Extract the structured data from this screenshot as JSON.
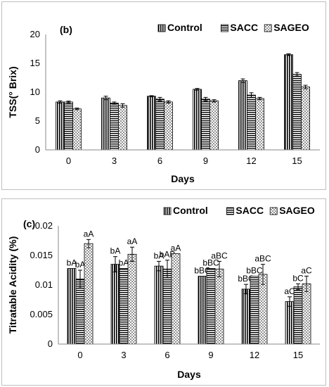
{
  "chart_data": [
    {
      "type": "bar",
      "panel_label": "(b)",
      "categories": [
        "0",
        "3",
        "6",
        "9",
        "12",
        "15"
      ],
      "xlabel": "Days",
      "ylabel": "TSS(° Brix)",
      "ylim": [
        0,
        20
      ],
      "yticks": [
        "0",
        "5",
        "10",
        "15",
        "20"
      ],
      "grid": false,
      "legend_position": "top-right",
      "series": [
        {
          "name": "Control",
          "values": [
            8.3,
            9.0,
            9.3,
            10.5,
            12.0,
            16.5
          ],
          "errors": [
            0.2,
            0.3,
            0.1,
            0.15,
            0.3,
            0.15
          ]
        },
        {
          "name": "SACC",
          "values": [
            8.3,
            8.1,
            8.8,
            8.8,
            9.5,
            13.1
          ],
          "errors": [
            0.15,
            0.2,
            0.3,
            0.3,
            0.4,
            0.3
          ]
        },
        {
          "name": "SAGEO",
          "values": [
            7.1,
            7.7,
            8.3,
            8.5,
            8.9,
            10.9
          ],
          "errors": [
            0.15,
            0.3,
            0.2,
            0.2,
            0.2,
            0.3
          ]
        }
      ]
    },
    {
      "type": "bar",
      "panel_label": "(c)",
      "categories": [
        "0",
        "3",
        "6",
        "9",
        "12",
        "15"
      ],
      "xlabel": "Days",
      "ylabel": "Titratable Acidity (%)",
      "ylim": [
        0,
        0.02
      ],
      "yticks": [
        "0",
        "0.005",
        "0.01",
        "0.015",
        "0.02"
      ],
      "grid": false,
      "legend_position": "top-right",
      "series": [
        {
          "name": "Control",
          "values": [
            0.0128,
            0.0135,
            0.0132,
            0.0115,
            0.0093,
            0.0072
          ],
          "errors": [
            0.0,
            0.0013,
            0.0008,
            0.0,
            0.0008,
            0.0008
          ],
          "labels": [
            "bA",
            "bA",
            "bA",
            "bBC",
            "bBC",
            "aC"
          ]
        },
        {
          "name": "SACC",
          "values": [
            0.011,
            0.0128,
            0.0127,
            0.0128,
            0.0115,
            0.0097
          ],
          "errors": [
            0.0015,
            0.0,
            0.0015,
            0.0,
            0.0,
            0.0005
          ],
          "labels": [
            "bA",
            "bA",
            "bAB",
            "bBC",
            "bBC",
            "bC"
          ]
        },
        {
          "name": "SAGEO",
          "values": [
            0.017,
            0.0152,
            0.0153,
            0.0127,
            0.0118,
            0.0102
          ],
          "errors": [
            0.0007,
            0.0012,
            0.0,
            0.0013,
            0.0017,
            0.0013
          ],
          "labels": [
            "aA",
            "aA",
            "aA",
            "aBC",
            "aBC",
            "aC"
          ]
        }
      ]
    }
  ]
}
